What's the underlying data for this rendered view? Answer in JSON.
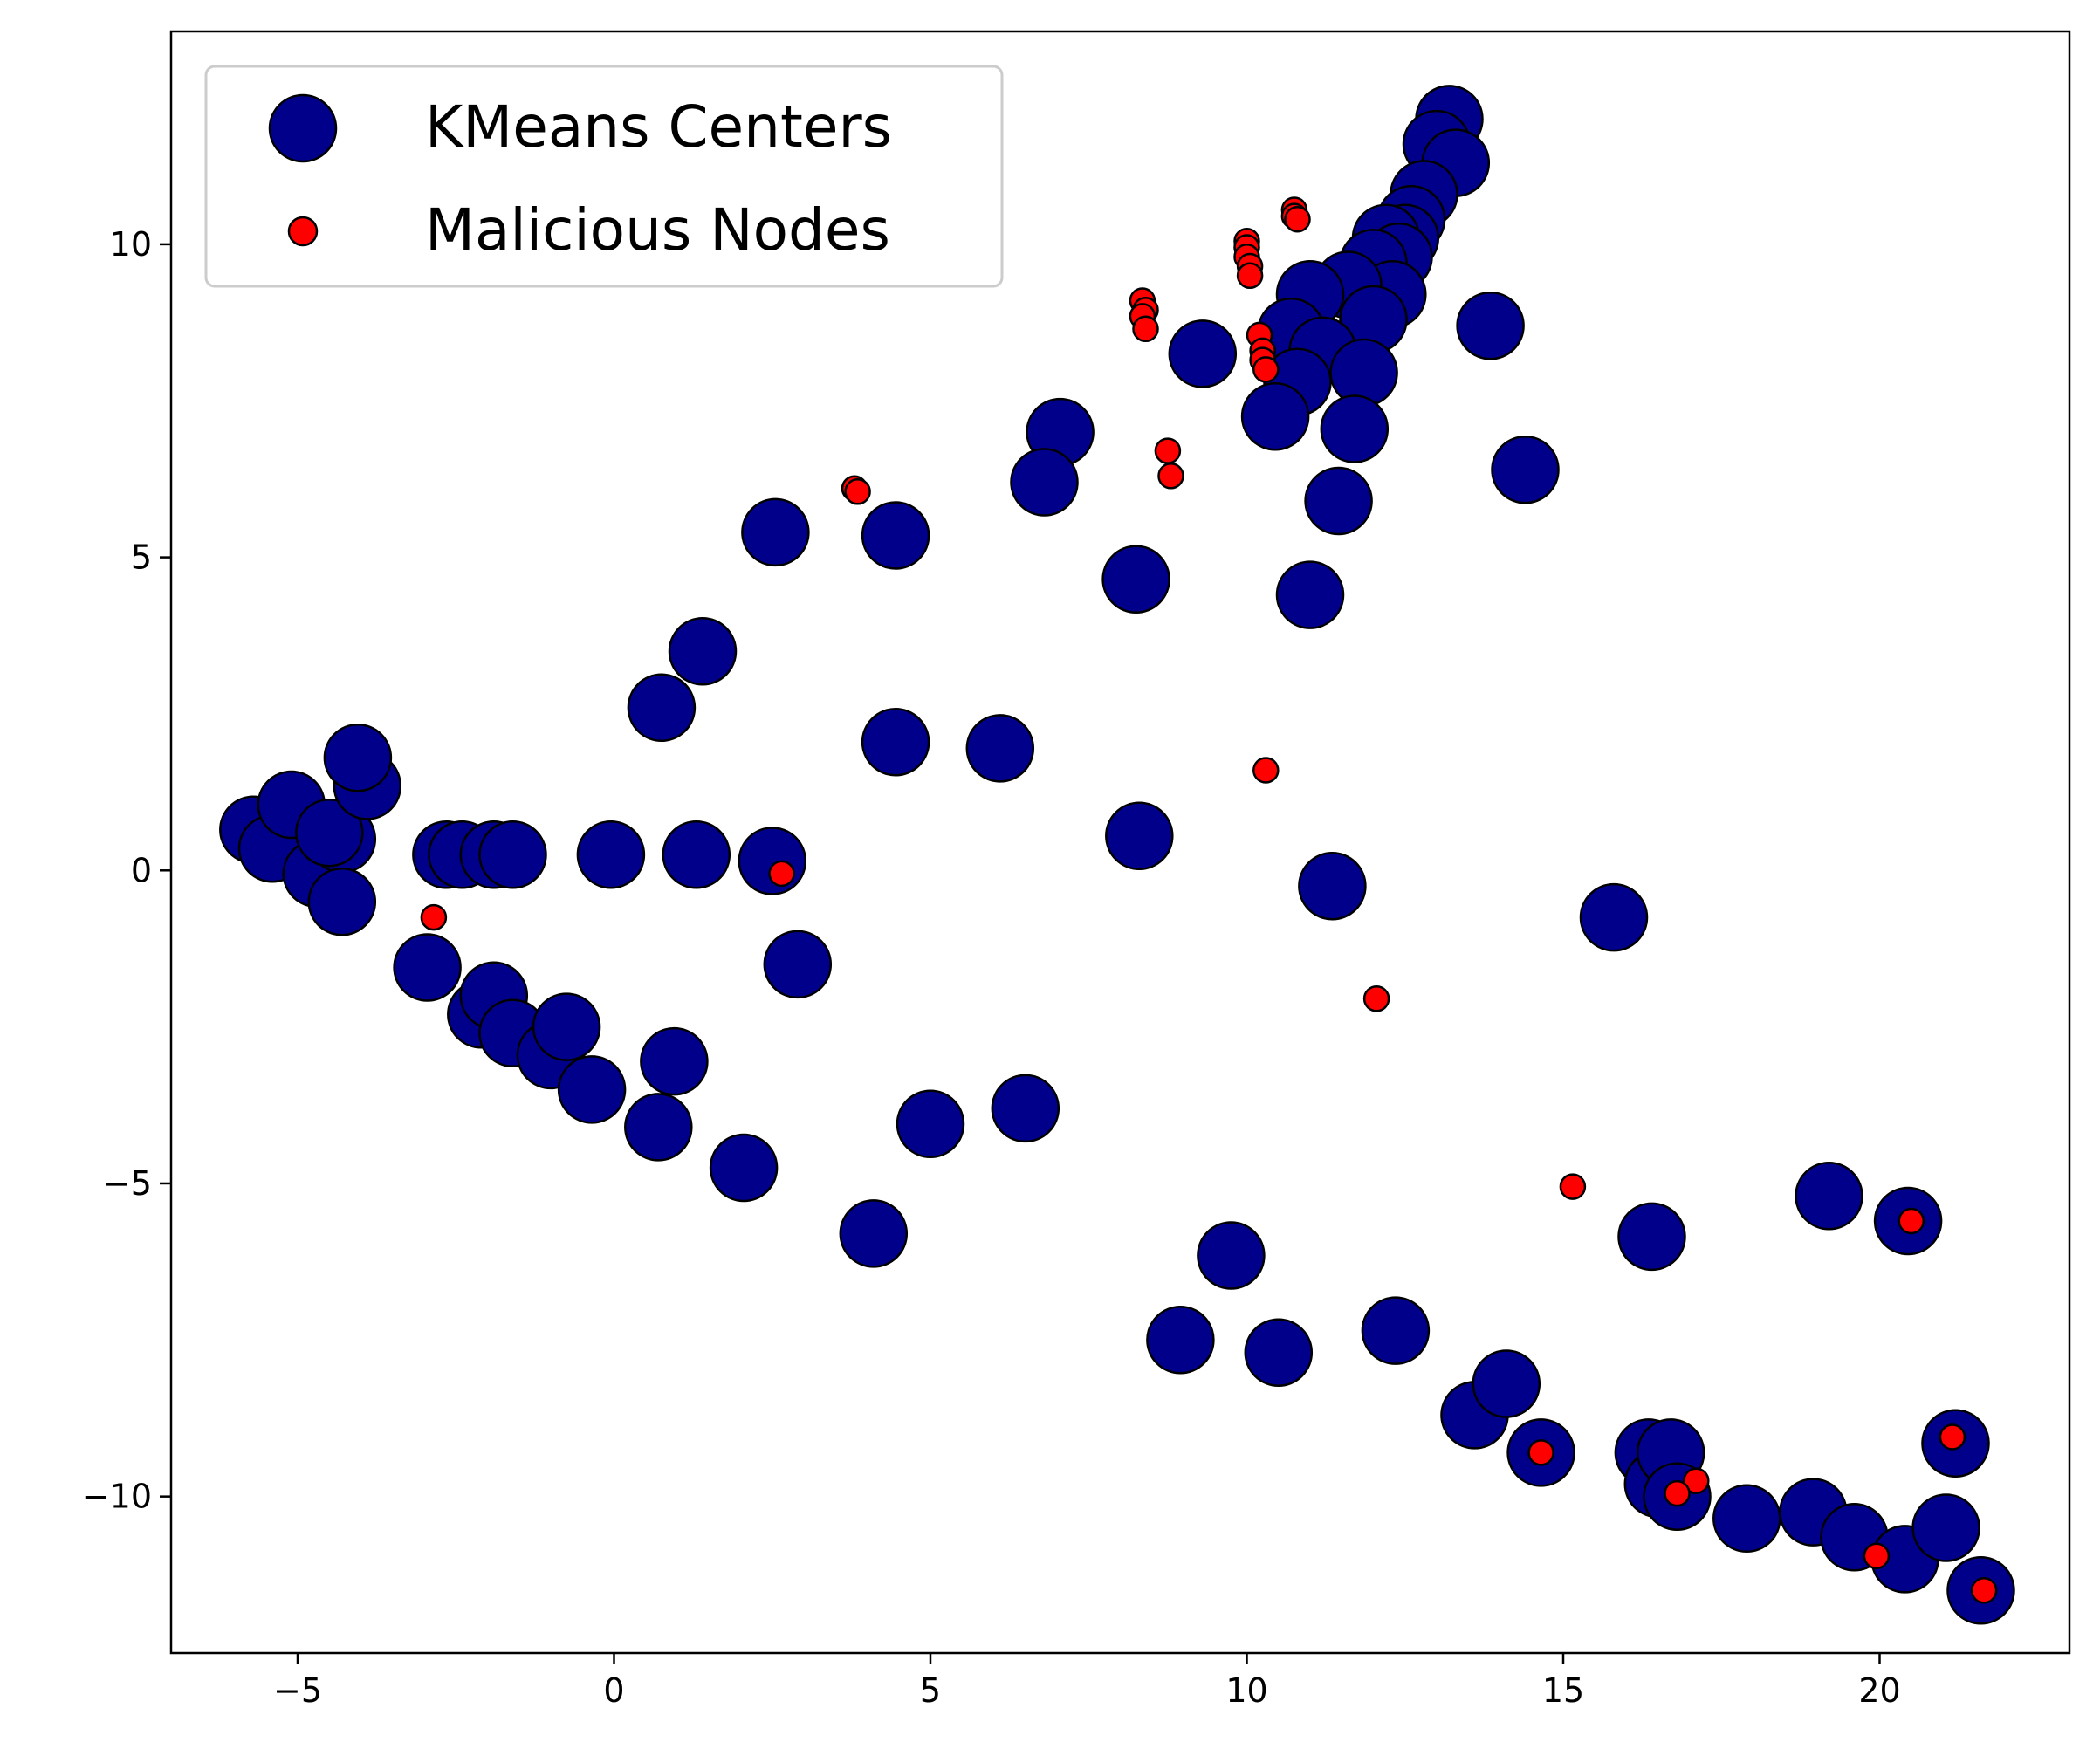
{
  "chart_data": {
    "type": "scatter",
    "xlim": [
      -7,
      23
    ],
    "ylim": [
      -12.5,
      13.4
    ],
    "x_ticks": [
      -5,
      0,
      5,
      10,
      15,
      20
    ],
    "x_tick_labels": [
      "−5",
      "0",
      "5",
      "10",
      "15",
      "20"
    ],
    "y_ticks": [
      -10,
      -5,
      0,
      5,
      10
    ],
    "y_tick_labels": [
      "−10",
      "−5",
      "0",
      "5",
      "10"
    ],
    "grid": false,
    "legend_position": "top-left",
    "series": [
      {
        "name": "KMeans Centers",
        "color": "#00008b",
        "edge_color": "#000000",
        "marker": "large-circle",
        "points": [
          [
            13.2,
            12.0
          ],
          [
            13.0,
            11.6
          ],
          [
            13.3,
            11.3
          ],
          [
            12.8,
            10.8
          ],
          [
            12.6,
            10.4
          ],
          [
            12.5,
            10.1
          ],
          [
            12.2,
            10.1
          ],
          [
            12.4,
            9.8
          ],
          [
            12.0,
            9.7
          ],
          [
            12.3,
            9.2
          ],
          [
            11.6,
            9.35
          ],
          [
            11.0,
            9.2
          ],
          [
            12.0,
            8.8
          ],
          [
            10.7,
            8.6
          ],
          [
            11.2,
            8.3
          ],
          [
            10.8,
            7.8
          ],
          [
            11.85,
            7.95
          ],
          [
            10.45,
            7.25
          ],
          [
            11.7,
            7.05
          ],
          [
            9.3,
            8.25
          ],
          [
            13.85,
            8.7
          ],
          [
            14.4,
            6.4
          ],
          [
            11.45,
            5.9
          ],
          [
            11.0,
            4.4
          ],
          [
            7.05,
            7.0
          ],
          [
            6.8,
            6.2
          ],
          [
            8.25,
            4.65
          ],
          [
            2.55,
            5.4
          ],
          [
            4.45,
            5.35
          ],
          [
            1.4,
            3.5
          ],
          [
            0.75,
            2.6
          ],
          [
            4.45,
            2.05
          ],
          [
            6.1,
            1.95
          ],
          [
            8.3,
            0.55
          ],
          [
            11.35,
            -0.25
          ],
          [
            15.8,
            -0.75
          ],
          [
            -5.7,
            0.65
          ],
          [
            -5.4,
            0.35
          ],
          [
            -5.1,
            1.05
          ],
          [
            -4.7,
            -0.05
          ],
          [
            -4.3,
            0.5
          ],
          [
            -4.5,
            0.6
          ],
          [
            -3.9,
            1.35
          ],
          [
            -4.05,
            1.8
          ],
          [
            -4.3,
            -0.5
          ],
          [
            -2.65,
            0.25
          ],
          [
            -2.4,
            0.25
          ],
          [
            -1.9,
            0.25
          ],
          [
            -1.6,
            0.25
          ],
          [
            -0.05,
            0.25
          ],
          [
            1.3,
            0.25
          ],
          [
            2.5,
            0.15
          ],
          [
            2.9,
            -1.5
          ],
          [
            -2.95,
            -1.55
          ],
          [
            -2.1,
            -2.3
          ],
          [
            -1.9,
            -2.0
          ],
          [
            -1.6,
            -2.6
          ],
          [
            -1.0,
            -2.95
          ],
          [
            -0.75,
            -2.5
          ],
          [
            -0.35,
            -3.5
          ],
          [
            0.95,
            -3.05
          ],
          [
            0.7,
            -4.1
          ],
          [
            2.05,
            -4.75
          ],
          [
            5.0,
            -4.05
          ],
          [
            6.5,
            -3.8
          ],
          [
            4.1,
            -5.8
          ],
          [
            9.75,
            -6.15
          ],
          [
            8.95,
            -7.5
          ],
          [
            10.5,
            -7.7
          ],
          [
            12.35,
            -7.35
          ],
          [
            13.6,
            -8.7
          ],
          [
            14.1,
            -8.2
          ],
          [
            14.65,
            -9.3
          ],
          [
            16.35,
            -9.3
          ],
          [
            16.5,
            -9.8
          ],
          [
            16.7,
            -9.3
          ],
          [
            16.8,
            -10.0
          ],
          [
            17.9,
            -10.35
          ],
          [
            18.95,
            -10.25
          ],
          [
            19.6,
            -10.65
          ],
          [
            20.4,
            -11.0
          ],
          [
            21.05,
            -10.5
          ],
          [
            21.2,
            -9.15
          ],
          [
            21.6,
            -11.5
          ],
          [
            19.2,
            -5.2
          ],
          [
            20.45,
            -5.6
          ],
          [
            16.4,
            -5.85
          ]
        ]
      },
      {
        "name": "Malicious Nodes",
        "color": "#ff0000",
        "edge_color": "#000000",
        "marker": "small-circle",
        "points": [
          [
            10.75,
            10.55
          ],
          [
            10.75,
            10.45
          ],
          [
            10.8,
            10.4
          ],
          [
            10.0,
            10.05
          ],
          [
            10.0,
            9.95
          ],
          [
            10.0,
            9.8
          ],
          [
            10.05,
            9.65
          ],
          [
            10.05,
            9.5
          ],
          [
            8.35,
            9.1
          ],
          [
            8.4,
            8.95
          ],
          [
            8.35,
            8.85
          ],
          [
            8.4,
            8.65
          ],
          [
            10.2,
            8.55
          ],
          [
            10.25,
            8.3
          ],
          [
            10.25,
            8.15
          ],
          [
            10.3,
            8.0
          ],
          [
            8.75,
            6.7
          ],
          [
            8.8,
            6.3
          ],
          [
            3.8,
            6.1
          ],
          [
            3.85,
            6.05
          ],
          [
            10.3,
            1.6
          ],
          [
            -2.85,
            -0.75
          ],
          [
            2.65,
            -0.05
          ],
          [
            12.05,
            -2.05
          ],
          [
            15.15,
            -5.05
          ],
          [
            20.5,
            -5.6
          ],
          [
            14.65,
            -9.3
          ],
          [
            17.1,
            -9.75
          ],
          [
            16.8,
            -9.95
          ],
          [
            19.95,
            -10.95
          ],
          [
            21.15,
            -9.05
          ],
          [
            21.65,
            -11.5
          ]
        ]
      }
    ]
  }
}
